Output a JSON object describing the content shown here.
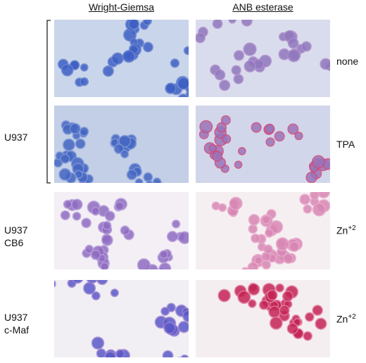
{
  "column_headers": [
    "Wright-Giemsa",
    "ANB esterase"
  ],
  "groups": [
    {
      "lines": [
        "U937"
      ]
    },
    {
      "lines": [
        "U937",
        "CB6"
      ]
    },
    {
      "lines": [
        "U937",
        "c-Maf"
      ]
    }
  ],
  "conditions": [
    {
      "text": "none"
    },
    {
      "text": "TPA"
    },
    {
      "text": "Zn",
      "sup": "+2"
    },
    {
      "text": "Zn",
      "sup": "+2"
    }
  ]
}
